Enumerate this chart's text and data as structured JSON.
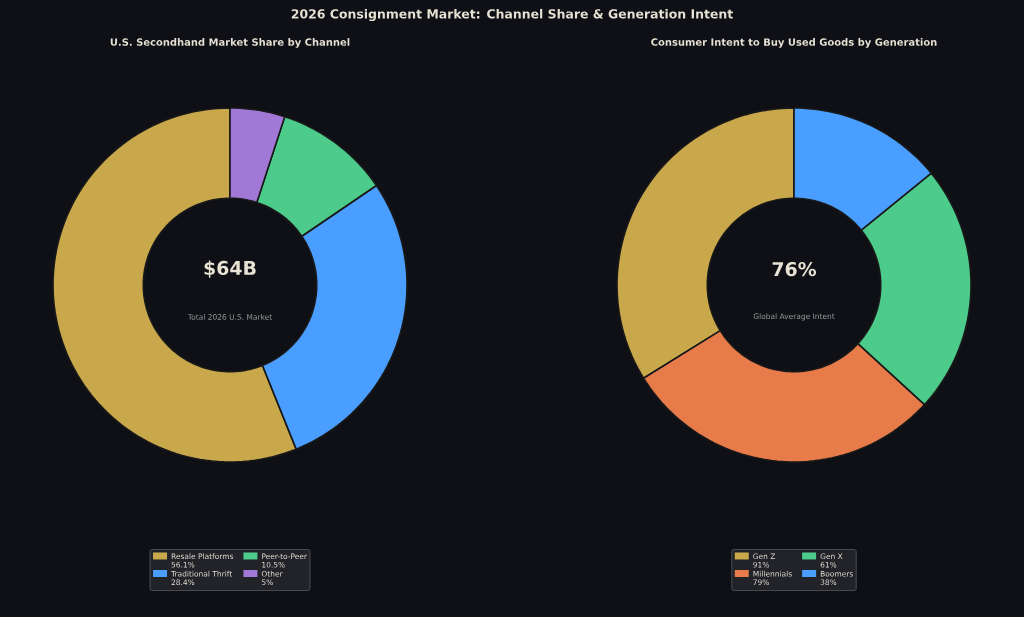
{
  "chart_data": [
    {
      "type": "donut",
      "title": "2026 Consignment Market: Channel Share & Generation Intent",
      "subtitle": "U.S. Secondhand Market Share by Channel",
      "categories": [
        "Resale Platforms",
        "Traditional Thrift",
        "Peer-to-Peer",
        "Other"
      ],
      "values": [
        56.1,
        28.4,
        10.5,
        5
      ],
      "colors": [
        "#c9a84c",
        "#4a9eff",
        "#4ccb8a",
        "#a178d6"
      ],
      "value_labels": [
        "56.1%",
        "28.4%",
        "10.5%",
        "5%"
      ],
      "annotations": [
        "$64B",
        "Total 2026 U.S. Market"
      ],
      "legend": "bottom"
    },
    {
      "type": "donut",
      "title": "Consumer Intent to Buy Used Goods by Generation",
      "categories": [
        "Gen Z",
        "Millennials",
        "Gen X",
        "Boomers"
      ],
      "values": [
        91,
        79,
        61,
        38
      ],
      "colors": [
        "#c9a84c",
        "#e87b4a",
        "#4ccb8a",
        "#4a9eff"
      ],
      "value_labels": [
        "91%",
        "79%",
        "61%",
        "38%"
      ],
      "annotations": [
        "76%",
        "Global Average Intent"
      ],
      "legend": "bottom"
    }
  ]
}
